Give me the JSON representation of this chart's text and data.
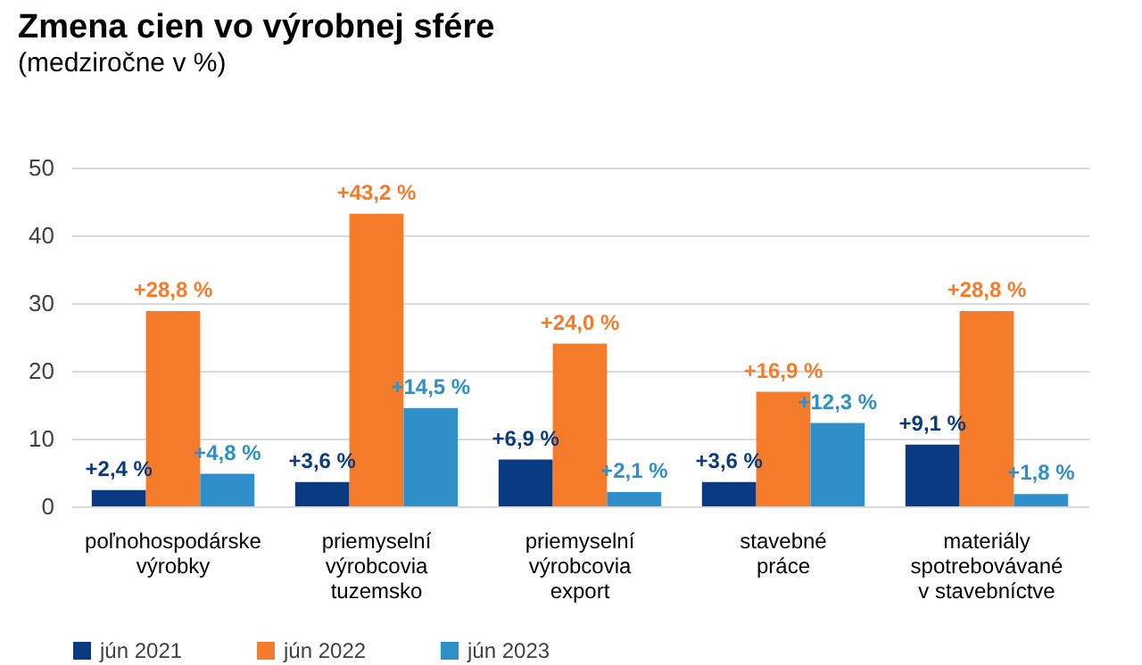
{
  "chart_data": {
    "type": "bar",
    "title": "Zmena cien vo výrobnej sfére",
    "subtitle": "(medziročne v %)",
    "categories": [
      "poľnohospodárske\nvýrobky",
      "priemyselní\nvýrobcovia\ntuzemsko",
      "priemyselní\nvýrobcovia\nexport",
      "stavebné\npráce",
      "materiály\nspotrebovávané\nv stavebníctve"
    ],
    "series": [
      {
        "name": "jún 2021",
        "color": "#0a3a82",
        "values": [
          2.4,
          3.6,
          6.9,
          3.6,
          9.1
        ],
        "value_labels": [
          "+2,4 %",
          "+3,6 %",
          "+6,9 %",
          "+3,6 %",
          "+9,1 %"
        ]
      },
      {
        "name": "jún 2022",
        "color": "#f47b2a",
        "values": [
          28.8,
          43.2,
          24.0,
          16.9,
          28.8
        ],
        "value_labels": [
          "+28,8 %",
          "+43,2 %",
          "+24,0 %",
          "+16,9 %",
          "+28,8 %"
        ]
      },
      {
        "name": "jún 2023",
        "color": "#2e8fc9",
        "values": [
          4.8,
          14.5,
          2.1,
          12.3,
          1.8
        ],
        "value_labels": [
          "+4,8 %",
          "+14,5 %",
          "+2,1 %",
          "+12,3 %",
          "+1,8 %"
        ]
      }
    ],
    "ylim": [
      0,
      50
    ],
    "yticks": [
      0,
      10,
      20,
      30,
      40,
      50
    ],
    "grid": "y",
    "legend": "bottom"
  }
}
